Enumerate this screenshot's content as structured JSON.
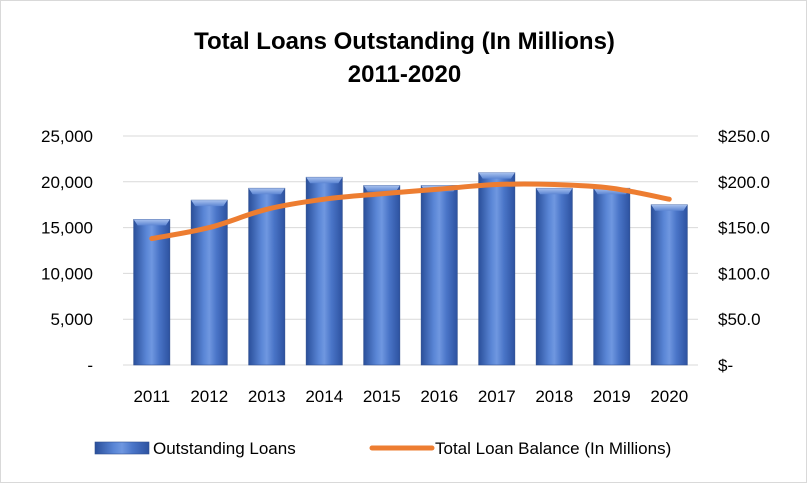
{
  "chart_data": {
    "type": "bar",
    "title": "Total Loans Outstanding (In Millions)",
    "subtitle": "2011-2020",
    "categories": [
      "2011",
      "2012",
      "2013",
      "2014",
      "2015",
      "2016",
      "2017",
      "2018",
      "2019",
      "2020"
    ],
    "series": [
      {
        "name": "Outstanding Loans",
        "type": "bar",
        "axis": "left",
        "color": "#4472c4",
        "values": [
          15900,
          18000,
          19300,
          20500,
          19600,
          19600,
          21000,
          19300,
          19300,
          17500
        ]
      },
      {
        "name": "Total Loan Balance (In Millions)",
        "type": "line",
        "axis": "right",
        "color": "#ed7d31",
        "values": [
          138,
          150,
          170,
          181,
          187,
          192,
          197,
          197,
          193,
          181
        ]
      }
    ],
    "left_axis": {
      "ylim": [
        0,
        25000
      ],
      "ticks": [
        0,
        5000,
        10000,
        15000,
        20000,
        25000
      ],
      "tick_labels": [
        "-",
        "5,000",
        "10,000",
        "15,000",
        "20,000",
        "25,000"
      ]
    },
    "right_axis": {
      "ylim": [
        0,
        250
      ],
      "ticks": [
        0,
        50,
        100,
        150,
        200,
        250
      ],
      "tick_labels": [
        "$-",
        "$50.0",
        "$100.0",
        "$150.0",
        "$200.0",
        "$250.0"
      ]
    },
    "grid": true,
    "legend": "bottom"
  }
}
